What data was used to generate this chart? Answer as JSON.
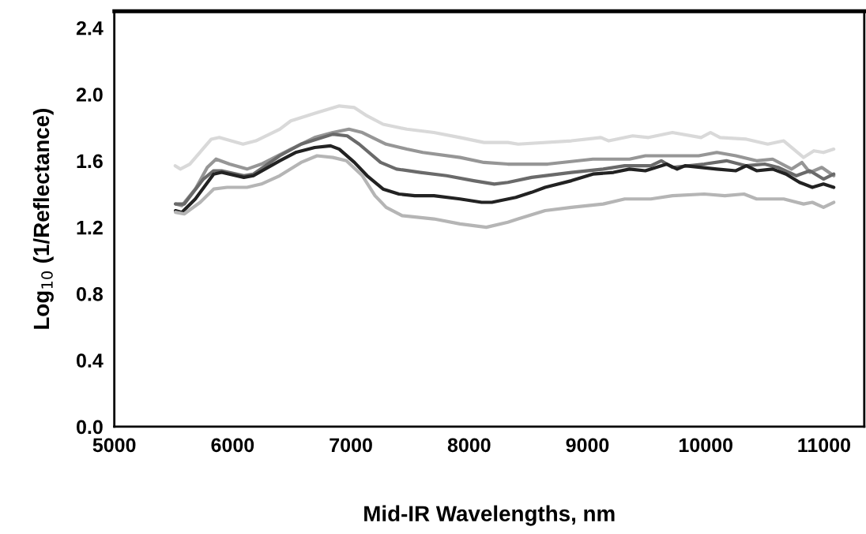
{
  "chart_data": {
    "type": "line",
    "xlabel": "Mid-IR Wavelengths, nm",
    "ylabel": "Log$_{10}$ (1/Reflectance)",
    "xlim": [
      5000,
      11340
    ],
    "xticks": [
      5000,
      6000,
      7000,
      8000,
      9000,
      10000,
      11000
    ],
    "ylim": [
      0,
      2.5
    ],
    "yticks": [
      {
        "value": 0,
        "label": "0.0"
      },
      0.4,
      0.8,
      1.2,
      1.6,
      {
        "value": 2,
        "label": "2.0"
      },
      2.4
    ],
    "grid": false,
    "legend": false,
    "marker": "none",
    "line_style": "solid",
    "series": [
      {
        "color": "#d9d9d9",
        "x": [
          5515,
          5558,
          5638,
          5820,
          5887,
          6088,
          6196,
          6398,
          6492,
          6714,
          6902,
          7030,
          7137,
          7272,
          7473,
          7702,
          7923,
          8125,
          8327,
          8414,
          8864,
          9113,
          9180,
          9382,
          9516,
          9718,
          9960,
          10040,
          10121,
          10343,
          10524,
          10659,
          10827,
          10914,
          10995,
          11082
        ],
        "values": [
          1.57,
          1.55,
          1.58,
          1.73,
          1.74,
          1.7,
          1.72,
          1.79,
          1.84,
          1.89,
          1.93,
          1.92,
          1.87,
          1.82,
          1.79,
          1.77,
          1.74,
          1.71,
          1.71,
          1.7,
          1.72,
          1.74,
          1.72,
          1.75,
          1.74,
          1.77,
          1.74,
          1.77,
          1.74,
          1.73,
          1.7,
          1.72,
          1.62,
          1.66,
          1.65,
          1.67
        ]
      },
      {
        "color": "#969696",
        "x": [
          5517,
          5571,
          5685,
          5786,
          5860,
          5974,
          6122,
          6243,
          6492,
          6694,
          6848,
          6983,
          7097,
          7298,
          7473,
          7608,
          7923,
          8125,
          8327,
          8414,
          8663,
          9046,
          9355,
          9489,
          9738,
          9940,
          10094,
          10255,
          10430,
          10565,
          10726,
          10813,
          10880,
          10981,
          11082
        ],
        "values": [
          1.34,
          1.33,
          1.43,
          1.56,
          1.61,
          1.58,
          1.55,
          1.58,
          1.67,
          1.74,
          1.77,
          1.79,
          1.77,
          1.7,
          1.67,
          1.65,
          1.62,
          1.59,
          1.58,
          1.58,
          1.58,
          1.61,
          1.61,
          1.63,
          1.63,
          1.63,
          1.65,
          1.63,
          1.6,
          1.61,
          1.55,
          1.59,
          1.53,
          1.56,
          1.51
        ]
      },
      {
        "color": "#6a6a6a",
        "x": [
          5517,
          5591,
          5753,
          5840,
          5907,
          6095,
          6176,
          6398,
          6579,
          6848,
          6969,
          7070,
          7251,
          7386,
          7587,
          7809,
          8038,
          8212,
          8327,
          8528,
          8864,
          9133,
          9315,
          9536,
          9624,
          9718,
          9987,
          10175,
          10343,
          10497,
          10612,
          10766,
          10880,
          10995,
          11082
        ],
        "values": [
          1.34,
          1.34,
          1.49,
          1.54,
          1.54,
          1.51,
          1.52,
          1.63,
          1.7,
          1.76,
          1.75,
          1.7,
          1.59,
          1.55,
          1.53,
          1.51,
          1.48,
          1.46,
          1.47,
          1.5,
          1.53,
          1.55,
          1.57,
          1.57,
          1.6,
          1.56,
          1.58,
          1.6,
          1.57,
          1.58,
          1.56,
          1.51,
          1.54,
          1.49,
          1.52
        ]
      },
      {
        "color": "#222222",
        "x": [
          5517,
          5571,
          5685,
          5840,
          5907,
          6095,
          6176,
          6398,
          6532,
          6694,
          6828,
          6902,
          7030,
          7137,
          7272,
          7406,
          7540,
          7702,
          7923,
          8105,
          8192,
          8394,
          8528,
          8642,
          8864,
          9046,
          9220,
          9355,
          9489,
          9671,
          9758,
          9825,
          10094,
          10255,
          10343,
          10430,
          10565,
          10679,
          10793,
          10901,
          10995,
          11082
        ],
        "values": [
          1.3,
          1.29,
          1.37,
          1.52,
          1.53,
          1.5,
          1.51,
          1.6,
          1.65,
          1.68,
          1.69,
          1.67,
          1.59,
          1.51,
          1.43,
          1.4,
          1.39,
          1.39,
          1.37,
          1.35,
          1.35,
          1.38,
          1.41,
          1.44,
          1.48,
          1.52,
          1.53,
          1.55,
          1.54,
          1.58,
          1.55,
          1.57,
          1.55,
          1.54,
          1.57,
          1.54,
          1.55,
          1.52,
          1.47,
          1.44,
          1.46,
          1.44
        ]
      },
      {
        "color": "#b5b5b5",
        "x": [
          5517,
          5591,
          5726,
          5840,
          5954,
          6122,
          6243,
          6398,
          6579,
          6714,
          6848,
          6962,
          7097,
          7204,
          7298,
          7433,
          7702,
          7923,
          8145,
          8327,
          8414,
          8642,
          8864,
          9133,
          9315,
          9536,
          9718,
          9987,
          10161,
          10323,
          10430,
          10659,
          10827,
          10901,
          10995,
          11082
        ],
        "values": [
          1.29,
          1.28,
          1.35,
          1.43,
          1.44,
          1.44,
          1.46,
          1.51,
          1.59,
          1.63,
          1.62,
          1.6,
          1.51,
          1.39,
          1.32,
          1.27,
          1.25,
          1.22,
          1.2,
          1.23,
          1.25,
          1.3,
          1.32,
          1.34,
          1.37,
          1.37,
          1.39,
          1.4,
          1.39,
          1.4,
          1.37,
          1.37,
          1.34,
          1.35,
          1.32,
          1.35
        ]
      }
    ]
  }
}
